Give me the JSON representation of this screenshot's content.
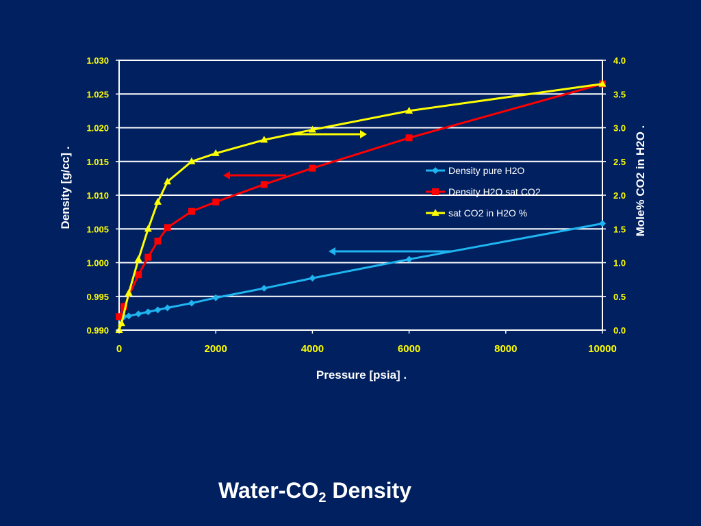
{
  "slide": {
    "title_main": "Water-CO",
    "title_sub": "2",
    "title_end": " Density"
  },
  "colors": {
    "background": "#002060",
    "axis_label": "#ffffff",
    "tick_label": "#ffff00",
    "gridline": "#ffffff"
  },
  "chart_data": {
    "type": "line",
    "xlabel": "Pressure [psia]  .",
    "ylabel": "Density [g/cc]  .",
    "y2label": "Mole% CO2 in H2O  .",
    "xlim": [
      0,
      10000
    ],
    "ylim": [
      0.99,
      1.03
    ],
    "y2lim": [
      0.0,
      4.0
    ],
    "x_ticks": [
      "0",
      "2000",
      "4000",
      "6000",
      "8000",
      "10000"
    ],
    "y_ticks": [
      "0.990",
      "0.995",
      "1.000",
      "1.005",
      "1.010",
      "1.015",
      "1.020",
      "1.025",
      "1.030"
    ],
    "y2_ticks": [
      "0.0",
      "0.5",
      "1.0",
      "1.5",
      "2.0",
      "2.5",
      "3.0",
      "3.5",
      "4.0"
    ],
    "grid": "horizontal",
    "legend_position": "right-center",
    "series": [
      {
        "name": "Density pure H2O",
        "axis": "left",
        "color": "#1fb5f0",
        "marker": "diamond",
        "x": [
          0,
          100,
          200,
          400,
          600,
          800,
          1000,
          1500,
          2000,
          3000,
          4000,
          6000,
          10000
        ],
        "values": [
          0.9918,
          0.992,
          0.9921,
          0.9924,
          0.9927,
          0.993,
          0.9933,
          0.994,
          0.9948,
          0.9962,
          0.9977,
          1.0005,
          1.0058
        ]
      },
      {
        "name": "Density H2O sat  CO2",
        "axis": "left",
        "color": "#ff0000",
        "marker": "square",
        "x": [
          0,
          100,
          400,
          600,
          800,
          1000,
          1500,
          2000,
          3000,
          4000,
          6000,
          10000
        ],
        "values": [
          0.992,
          0.9935,
          0.9982,
          1.0008,
          1.0032,
          1.0052,
          1.0076,
          1.009,
          1.0116,
          1.014,
          1.0185,
          1.0265
        ]
      },
      {
        "name": "sat CO2 in H2O %",
        "axis": "right",
        "color": "#ffff00",
        "marker": "triangle",
        "x": [
          0,
          50,
          200,
          400,
          600,
          800,
          1000,
          1500,
          2000,
          3000,
          4000,
          6000,
          10000
        ],
        "values": [
          0.0,
          0.1,
          0.55,
          1.05,
          1.5,
          1.9,
          2.2,
          2.5,
          2.62,
          2.82,
          2.97,
          3.25,
          3.65
        ]
      }
    ]
  }
}
